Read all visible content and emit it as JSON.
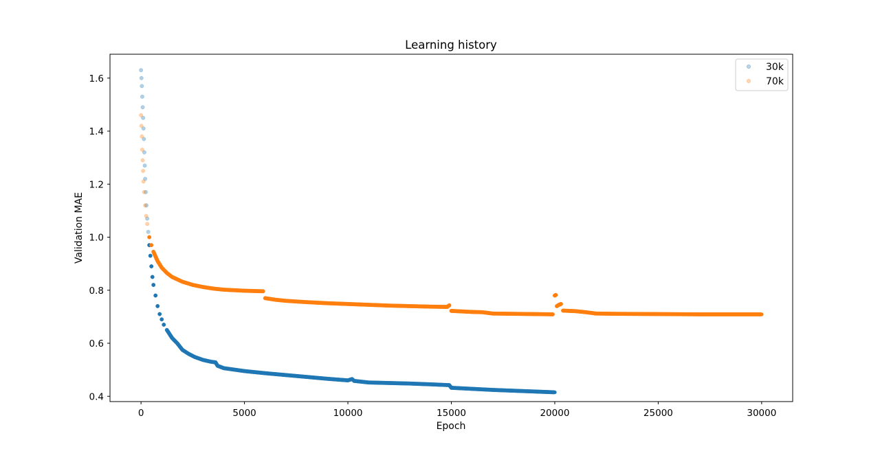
{
  "chart_data": {
    "type": "scatter",
    "title": "Learning history",
    "xlabel": "Epoch",
    "ylabel": "Validation MAE",
    "xlim": [
      -1500,
      31500
    ],
    "ylim": [
      0.38,
      1.69
    ],
    "x_ticks": [
      0,
      5000,
      10000,
      15000,
      20000,
      25000,
      30000
    ],
    "x_tick_labels": [
      "0",
      "5000",
      "10000",
      "15000",
      "20000",
      "25000",
      "30000"
    ],
    "y_ticks": [
      0.4,
      0.6,
      0.8,
      1.0,
      1.2,
      1.4,
      1.6
    ],
    "y_tick_labels": [
      "0.4",
      "0.6",
      "0.8",
      "1.0",
      "1.2",
      "1.4",
      "1.6"
    ],
    "grid": false,
    "legend_position": "top-right",
    "legend_marker_opacity": 0.3,
    "series": [
      {
        "name": "30k",
        "color": "#1f77b4",
        "points": [
          [
            0,
            1.63
          ],
          [
            20,
            1.6
          ],
          [
            40,
            1.57
          ],
          [
            60,
            1.53
          ],
          [
            80,
            1.49
          ],
          [
            100,
            1.45
          ],
          [
            120,
            1.41
          ],
          [
            140,
            1.37
          ],
          [
            160,
            1.32
          ],
          [
            180,
            1.27
          ],
          [
            200,
            1.22
          ],
          [
            230,
            1.17
          ],
          [
            260,
            1.12
          ],
          [
            300,
            1.07
          ],
          [
            350,
            1.02
          ],
          [
            400,
            0.97
          ],
          [
            450,
            0.93
          ],
          [
            500,
            0.89
          ],
          [
            550,
            0.85
          ],
          [
            600,
            0.82
          ],
          [
            700,
            0.78
          ],
          [
            800,
            0.74
          ],
          [
            900,
            0.71
          ],
          [
            1000,
            0.69
          ],
          [
            1100,
            0.67
          ],
          [
            1250,
            0.65
          ],
          [
            1500,
            0.62
          ],
          [
            1750,
            0.6
          ],
          [
            2000,
            0.575
          ],
          [
            2300,
            0.56
          ],
          [
            2600,
            0.548
          ],
          [
            3000,
            0.537
          ],
          [
            3400,
            0.53
          ],
          [
            3600,
            0.528
          ],
          [
            3700,
            0.515
          ],
          [
            4000,
            0.506
          ],
          [
            5000,
            0.495
          ],
          [
            6000,
            0.487
          ],
          [
            7000,
            0.48
          ],
          [
            8000,
            0.473
          ],
          [
            9000,
            0.466
          ],
          [
            10000,
            0.46
          ],
          [
            10200,
            0.465
          ],
          [
            10300,
            0.458
          ],
          [
            11000,
            0.452
          ],
          [
            12000,
            0.45
          ],
          [
            13000,
            0.448
          ],
          [
            14000,
            0.445
          ],
          [
            14900,
            0.442
          ],
          [
            15000,
            0.432
          ],
          [
            16000,
            0.428
          ],
          [
            17000,
            0.424
          ],
          [
            18000,
            0.421
          ],
          [
            19000,
            0.418
          ],
          [
            20000,
            0.415
          ]
        ]
      },
      {
        "name": "70k",
        "color": "#ff7f0e",
        "points": [
          [
            0,
            1.46
          ],
          [
            20,
            1.42
          ],
          [
            40,
            1.38
          ],
          [
            60,
            1.33
          ],
          [
            80,
            1.29
          ],
          [
            100,
            1.25
          ],
          [
            120,
            1.21
          ],
          [
            150,
            1.17
          ],
          [
            200,
            1.12
          ],
          [
            250,
            1.08
          ],
          [
            300,
            1.05
          ],
          [
            400,
            1.0
          ],
          [
            500,
            0.97
          ],
          [
            600,
            0.945
          ],
          [
            800,
            0.91
          ],
          [
            1000,
            0.885
          ],
          [
            1250,
            0.865
          ],
          [
            1500,
            0.85
          ],
          [
            2000,
            0.832
          ],
          [
            2500,
            0.82
          ],
          [
            3000,
            0.812
          ],
          [
            3500,
            0.806
          ],
          [
            4000,
            0.802
          ],
          [
            5000,
            0.798
          ],
          [
            5900,
            0.796
          ],
          [
            6000,
            0.77
          ],
          [
            6500,
            0.764
          ],
          [
            7000,
            0.76
          ],
          [
            8000,
            0.755
          ],
          [
            9000,
            0.751
          ],
          [
            10000,
            0.748
          ],
          [
            11000,
            0.745
          ],
          [
            12000,
            0.742
          ],
          [
            13000,
            0.74
          ],
          [
            14000,
            0.738
          ],
          [
            14800,
            0.737
          ],
          [
            14900,
            0.743
          ],
          [
            15000,
            0.722
          ],
          [
            16000,
            0.718
          ],
          [
            16500,
            0.717
          ],
          [
            17000,
            0.712
          ],
          [
            18000,
            0.711
          ],
          [
            19000,
            0.71
          ],
          [
            19900,
            0.709
          ],
          [
            20000,
            0.78
          ],
          [
            20050,
            0.782
          ],
          [
            20100,
            0.74
          ],
          [
            20200,
            0.745
          ],
          [
            20300,
            0.748
          ],
          [
            20400,
            0.723
          ],
          [
            21000,
            0.721
          ],
          [
            21500,
            0.717
          ],
          [
            22000,
            0.712
          ],
          [
            23000,
            0.711
          ],
          [
            25000,
            0.71
          ],
          [
            27000,
            0.709
          ],
          [
            29000,
            0.709
          ],
          [
            30000,
            0.709
          ]
        ]
      }
    ]
  }
}
